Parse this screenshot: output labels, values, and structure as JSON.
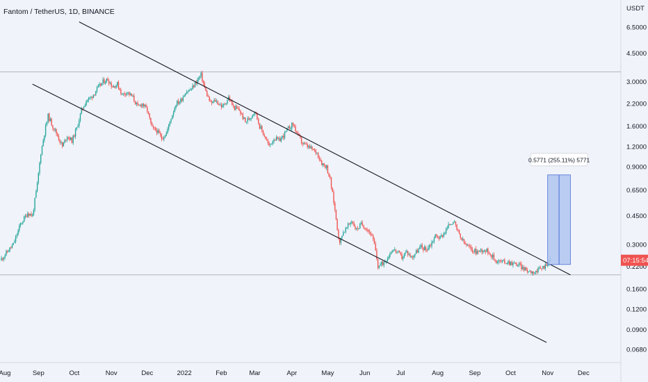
{
  "chart_data": {
    "type": "candlestick",
    "title": "Fantom / TetherUS, 1D, BINANCE",
    "y_unit": "USDT",
    "y_scale": "log",
    "y_ticks": [
      "6.5000",
      "4.5000",
      "3.0000",
      "2.2000",
      "1.6000",
      "1.2000",
      "0.9000",
      "0.6500",
      "0.4500",
      "0.3000",
      "0.2200",
      "0.1600",
      "0.1200",
      "0.0900",
      "0.0680"
    ],
    "x_ticks": [
      "Aug",
      "Sep",
      "Oct",
      "Nov",
      "Dec",
      "2022",
      "Feb",
      "Mar",
      "Apr",
      "May",
      "Jun",
      "Jul",
      "Aug",
      "Sep",
      "Oct",
      "Nov",
      "Dec"
    ],
    "x_range": [
      "2021-08-01",
      "2022-12-31"
    ],
    "price_tag": {
      "text": "07:15:54",
      "value": 0.24,
      "color": "#ef5350"
    },
    "horizontal_lines": [
      3.45,
      0.195
    ],
    "measurement": {
      "label": "0.5771 (255.11%) 5771",
      "from_date": "2022-11-01",
      "to_date": "2022-11-20",
      "low": 0.226,
      "high": 0.803
    },
    "trend_lines": [
      {
        "name": "upper-channel",
        "from": {
          "date": "2021-10-05",
          "price": 7.0
        },
        "to": {
          "date": "2022-11-20",
          "price": 0.195
        }
      },
      {
        "name": "lower-channel",
        "from": {
          "date": "2021-08-27",
          "price": 2.9
        },
        "to": {
          "date": "2022-10-31",
          "price": 0.075
        }
      }
    ],
    "price_path": [
      [
        "2021-08-01",
        0.24
      ],
      [
        "2021-08-05",
        0.26
      ],
      [
        "2021-08-12",
        0.3
      ],
      [
        "2021-08-18",
        0.4
      ],
      [
        "2021-08-24",
        0.47
      ],
      [
        "2021-08-28",
        0.45
      ],
      [
        "2021-09-01",
        0.7
      ],
      [
        "2021-09-04",
        1.1
      ],
      [
        "2021-09-07",
        1.45
      ],
      [
        "2021-09-10",
        1.85
      ],
      [
        "2021-09-14",
        1.6
      ],
      [
        "2021-09-18",
        1.4
      ],
      [
        "2021-09-22",
        1.2
      ],
      [
        "2021-09-26",
        1.4
      ],
      [
        "2021-09-30",
        1.3
      ],
      [
        "2021-10-04",
        1.55
      ],
      [
        "2021-10-08",
        2.0
      ],
      [
        "2021-10-12",
        2.3
      ],
      [
        "2021-10-16",
        2.4
      ],
      [
        "2021-10-21",
        2.7
      ],
      [
        "2021-10-26",
        3.0
      ],
      [
        "2021-10-30",
        3.1
      ],
      [
        "2021-11-03",
        2.8
      ],
      [
        "2021-11-07",
        2.9
      ],
      [
        "2021-11-11",
        2.5
      ],
      [
        "2021-11-15",
        2.6
      ],
      [
        "2021-11-20",
        2.4
      ],
      [
        "2021-11-24",
        2.1
      ],
      [
        "2021-11-28",
        2.2
      ],
      [
        "2021-12-02",
        2.0
      ],
      [
        "2021-12-06",
        1.55
      ],
      [
        "2021-12-10",
        1.5
      ],
      [
        "2021-12-14",
        1.35
      ],
      [
        "2021-12-18",
        1.45
      ],
      [
        "2021-12-22",
        1.8
      ],
      [
        "2021-12-26",
        2.2
      ],
      [
        "2021-12-30",
        2.3
      ],
      [
        "2022-01-03",
        2.6
      ],
      [
        "2022-01-08",
        2.7
      ],
      [
        "2022-01-12",
        3.0
      ],
      [
        "2022-01-16",
        3.3
      ],
      [
        "2022-01-20",
        2.6
      ],
      [
        "2022-01-24",
        2.2
      ],
      [
        "2022-01-28",
        2.3
      ],
      [
        "2022-02-03",
        2.1
      ],
      [
        "2022-02-08",
        2.4
      ],
      [
        "2022-02-12",
        2.1
      ],
      [
        "2022-02-17",
        2.0
      ],
      [
        "2022-02-22",
        1.7
      ],
      [
        "2022-02-26",
        1.8
      ],
      [
        "2022-03-02",
        2.0
      ],
      [
        "2022-03-06",
        1.6
      ],
      [
        "2022-03-10",
        1.4
      ],
      [
        "2022-03-14",
        1.2
      ],
      [
        "2022-03-18",
        1.35
      ],
      [
        "2022-03-22",
        1.3
      ],
      [
        "2022-03-26",
        1.4
      ],
      [
        "2022-03-30",
        1.55
      ],
      [
        "2022-04-03",
        1.65
      ],
      [
        "2022-04-07",
        1.4
      ],
      [
        "2022-04-11",
        1.25
      ],
      [
        "2022-04-15",
        1.2
      ],
      [
        "2022-04-19",
        1.15
      ],
      [
        "2022-04-23",
        1.1
      ],
      [
        "2022-04-27",
        0.95
      ],
      [
        "2022-05-01",
        0.9
      ],
      [
        "2022-05-04",
        0.75
      ],
      [
        "2022-05-07",
        0.55
      ],
      [
        "2022-05-10",
        0.38
      ],
      [
        "2022-05-12",
        0.3
      ],
      [
        "2022-05-14",
        0.35
      ],
      [
        "2022-05-18",
        0.38
      ],
      [
        "2022-05-22",
        0.42
      ],
      [
        "2022-05-26",
        0.37
      ],
      [
        "2022-05-30",
        0.4
      ],
      [
        "2022-06-03",
        0.38
      ],
      [
        "2022-06-07",
        0.35
      ],
      [
        "2022-06-10",
        0.3
      ],
      [
        "2022-06-13",
        0.22
      ],
      [
        "2022-06-17",
        0.23
      ],
      [
        "2022-06-21",
        0.25
      ],
      [
        "2022-06-25",
        0.28
      ],
      [
        "2022-06-29",
        0.27
      ],
      [
        "2022-07-03",
        0.25
      ],
      [
        "2022-07-07",
        0.27
      ],
      [
        "2022-07-11",
        0.25
      ],
      [
        "2022-07-15",
        0.27
      ],
      [
        "2022-07-19",
        0.29
      ],
      [
        "2022-07-23",
        0.28
      ],
      [
        "2022-07-27",
        0.3
      ],
      [
        "2022-07-31",
        0.34
      ],
      [
        "2022-08-04",
        0.33
      ],
      [
        "2022-08-08",
        0.36
      ],
      [
        "2022-08-12",
        0.4
      ],
      [
        "2022-08-15",
        0.42
      ],
      [
        "2022-08-18",
        0.37
      ],
      [
        "2022-08-21",
        0.33
      ],
      [
        "2022-08-25",
        0.3
      ],
      [
        "2022-08-30",
        0.28
      ],
      [
        "2022-09-04",
        0.27
      ],
      [
        "2022-09-09",
        0.28
      ],
      [
        "2022-09-14",
        0.27
      ],
      [
        "2022-09-19",
        0.24
      ],
      [
        "2022-09-24",
        0.235
      ],
      [
        "2022-09-29",
        0.235
      ],
      [
        "2022-10-04",
        0.23
      ],
      [
        "2022-10-09",
        0.225
      ],
      [
        "2022-10-14",
        0.21
      ],
      [
        "2022-10-19",
        0.205
      ],
      [
        "2022-10-24",
        0.205
      ],
      [
        "2022-10-28",
        0.215
      ],
      [
        "2022-11-01",
        0.225
      ],
      [
        "2022-11-03",
        0.24
      ]
    ],
    "colors": {
      "up": "#26a69a",
      "down": "#ef5350",
      "background": "#f0f3fa",
      "measure_fill": "#b0c4ef",
      "measure_border": "#4a6fd6"
    }
  }
}
